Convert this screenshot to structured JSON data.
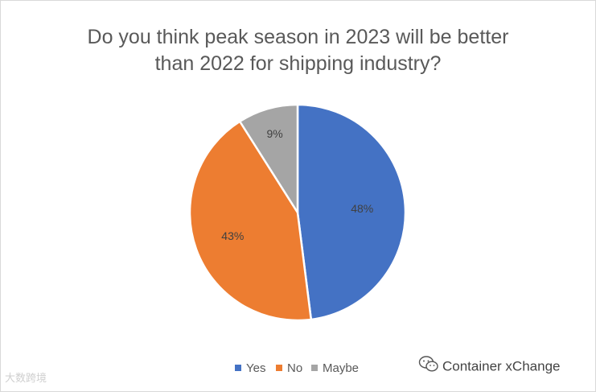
{
  "chart_data": {
    "type": "pie",
    "title": "Do you think peak season in 2023 will be better than 2022 for shipping industry?",
    "title_lines": [
      "Do you think peak season in 2023 will be better",
      "than 2022 for shipping industry?"
    ],
    "slices": [
      {
        "label": "Yes",
        "value": 48,
        "data_label": "48%",
        "color": "#4472c4"
      },
      {
        "label": "No",
        "value": 43,
        "data_label": "43%",
        "color": "#ed7d31"
      },
      {
        "label": "Maybe",
        "value": 9,
        "data_label": "9%",
        "color": "#a5a5a5"
      }
    ],
    "legend_position": "bottom"
  },
  "branding": {
    "source": "Container xChange",
    "icon": "wechat-icon"
  },
  "watermark": {
    "text": "大数跨境"
  }
}
